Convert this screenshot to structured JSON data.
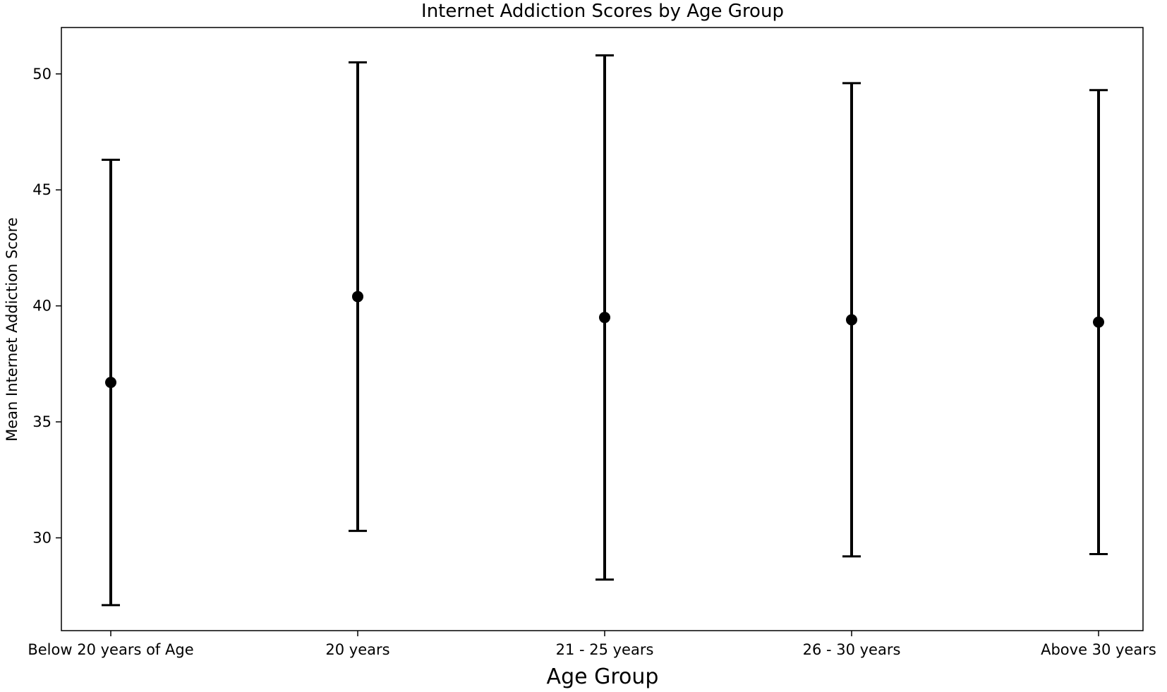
{
  "chart_data": {
    "type": "scatter",
    "title": "Internet Addiction Scores by Age Group",
    "xlabel": "Age Group",
    "ylabel": "Mean Internet Addiction Score",
    "categories": [
      "Below 20 years of Age",
      "20 years",
      "21 - 25 years",
      "26 - 30 years",
      "Above 30 years"
    ],
    "series": [
      {
        "values": [
          36.7,
          40.4,
          39.5,
          39.4,
          39.3
        ],
        "error_low": [
          27.1,
          30.3,
          28.2,
          29.2,
          29.3
        ],
        "error_high": [
          46.3,
          50.5,
          50.8,
          49.6,
          49.3
        ]
      }
    ],
    "ylim": [
      26.0,
      52.0
    ],
    "yticks": [
      30,
      35,
      40,
      45,
      50
    ],
    "grid": false,
    "colors": {
      "marker": "#000000",
      "errorbar": "#000000"
    }
  }
}
